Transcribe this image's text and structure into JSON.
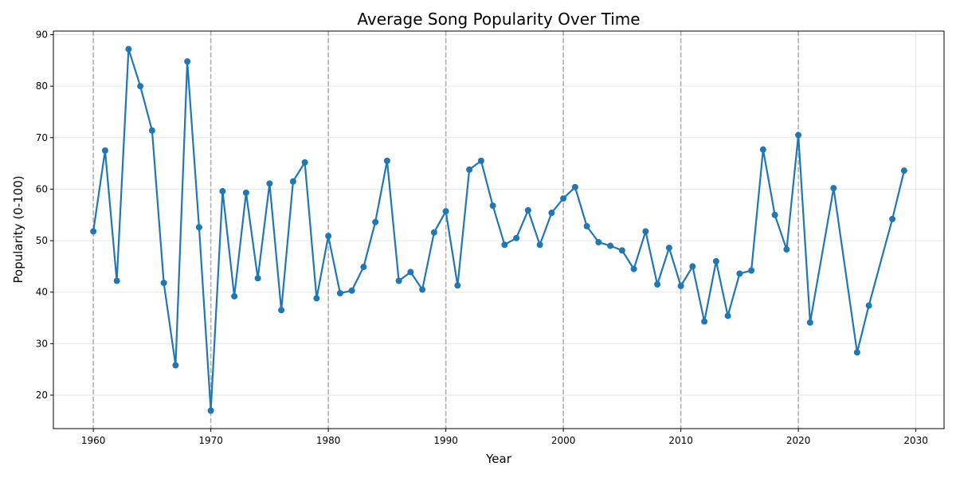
{
  "chart_data": {
    "type": "line",
    "title": "Average Song Popularity Over Time",
    "xlabel": "Year",
    "ylabel": "Popularity (0-100)",
    "xlim": [
      1956.6,
      2032.4
    ],
    "ylim": [
      13.5,
      90.7
    ],
    "xticks": [
      1960,
      1970,
      1980,
      1990,
      2000,
      2010,
      2020,
      2030
    ],
    "yticks": [
      20,
      30,
      40,
      50,
      60,
      70,
      80,
      90
    ],
    "grid": true,
    "decade_lines": [
      1960,
      1970,
      1980,
      1990,
      2000,
      2010,
      2020
    ],
    "line_color": "#1f77b4",
    "decade_line_color": "#b0b0b0",
    "series": [
      {
        "x": [
          1960,
          1961,
          1962,
          1963,
          1964,
          1965,
          1966,
          1967,
          1968,
          1969,
          1970,
          1971,
          1972,
          1973,
          1974,
          1975,
          1976,
          1977,
          1978,
          1979,
          1980,
          1981,
          1982,
          1983,
          1984,
          1985,
          1986,
          1987,
          1988,
          1989,
          1990,
          1991,
          1992,
          1993,
          1994,
          1995,
          1996,
          1997,
          1998,
          1999,
          2000,
          2001,
          2002,
          2003,
          2004,
          2005,
          2006,
          2007,
          2008,
          2009,
          2010,
          2011,
          2012,
          2013,
          2014,
          2015,
          2016,
          2017,
          2018,
          2019,
          2020,
          2021,
          2023,
          2025,
          2026,
          2028,
          2029
        ],
        "values": [
          51.8,
          67.5,
          42.2,
          87.2,
          80.0,
          71.4,
          41.8,
          25.8,
          84.8,
          52.6,
          17.0,
          59.6,
          39.2,
          59.3,
          42.7,
          61.1,
          36.5,
          61.5,
          65.2,
          38.8,
          50.9,
          39.8,
          40.3,
          44.9,
          53.6,
          65.5,
          42.2,
          43.9,
          40.5,
          51.6,
          55.7,
          41.3,
          63.8,
          65.5,
          56.8,
          49.2,
          50.5,
          55.9,
          49.2,
          55.4,
          58.2,
          60.4,
          52.8,
          49.7,
          49.0,
          48.1,
          44.5,
          51.8,
          41.5,
          48.6,
          41.2,
          45.0,
          34.3,
          46.0,
          35.4,
          43.6,
          44.2,
          67.7,
          55.0,
          48.3,
          70.5,
          34.1,
          60.2,
          28.3,
          37.4,
          54.2,
          63.6
        ]
      }
    ]
  }
}
